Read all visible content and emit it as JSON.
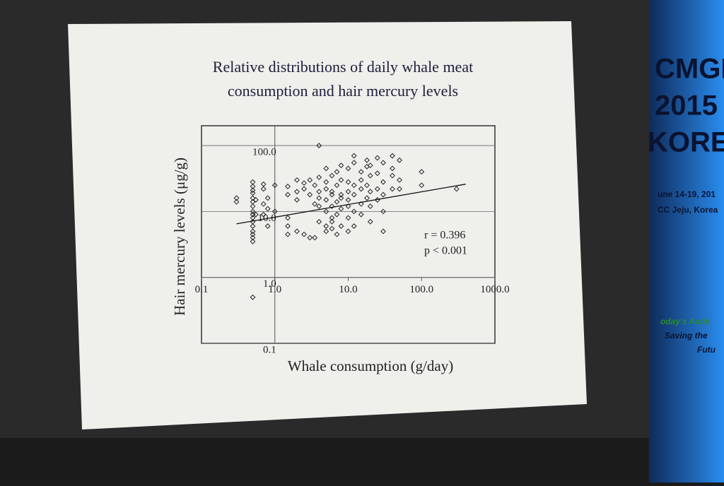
{
  "chart_data": {
    "type": "scatter",
    "title": "Relative distributions of daily whale meat consumption and hair mercury levels",
    "xlabel": "Whale consumption (g/day)",
    "ylabel": "Hair mercury levels (μg/g)",
    "annotations": [
      "r = 0.396",
      "p < 0.001"
    ],
    "log_x": true,
    "log_y": true,
    "color": "#222222",
    "grid": true,
    "x_axis_at": 1,
    "y_axis_at": 1,
    "xlim": [
      0.1,
      1000
    ],
    "ylim": [
      0.1,
      200
    ],
    "xticks": [
      0.1,
      {
        "value": 1,
        "label": "1.0"
      },
      {
        "value": 10,
        "label": "10.0"
      },
      {
        "value": 100,
        "label": "100.0"
      },
      {
        "value": 1000,
        "label": "1000.0"
      }
    ],
    "yticks": [
      0.1,
      {
        "value": 1,
        "label": "1.0"
      },
      {
        "value": 10,
        "label": "10.0"
      },
      {
        "value": 100,
        "label": "100.0"
      }
    ],
    "x": [
      0.3,
      0.3,
      0.5,
      0.5,
      0.5,
      0.5,
      0.5,
      0.5,
      0.5,
      0.5,
      0.5,
      0.5,
      0.5,
      0.5,
      0.5,
      0.5,
      0.5,
      0.5,
      0.5,
      0.55,
      0.55,
      0.7,
      0.7,
      0.7,
      0.7,
      0.8,
      0.8,
      0.8,
      1,
      1,
      1.5,
      1.5,
      1.5,
      1.5,
      1.5,
      2,
      2,
      2,
      2,
      2.5,
      2.5,
      2.5,
      3,
      3,
      3,
      3.5,
      3.5,
      3.5,
      4,
      4,
      4,
      4,
      4,
      4,
      5,
      5,
      5,
      5,
      5,
      5,
      5,
      6,
      6,
      6,
      6,
      6,
      6,
      6,
      7,
      7,
      7,
      7,
      7,
      8,
      8,
      8,
      8,
      8,
      8,
      10,
      10,
      10,
      10,
      10,
      10,
      10,
      12,
      12,
      12,
      12,
      12,
      12,
      15,
      15,
      15,
      15,
      15,
      18,
      18,
      18,
      18,
      20,
      20,
      20,
      20,
      20,
      25,
      25,
      25,
      25,
      30,
      30,
      30,
      30,
      30,
      40,
      40,
      40,
      40,
      50,
      50,
      50,
      100,
      100,
      300
    ],
    "values": [
      16,
      14,
      3.5,
      4,
      4.5,
      5,
      6,
      7,
      8,
      9,
      10,
      12,
      14,
      16,
      19,
      21,
      24,
      28,
      0.5,
      9,
      15,
      9,
      13,
      22,
      26,
      6,
      11,
      16,
      10,
      25,
      24,
      18,
      8,
      6,
      4.5,
      20,
      15,
      30,
      5,
      4.5,
      22,
      27,
      18,
      4,
      30,
      4,
      13,
      25,
      100,
      20,
      16,
      12,
      33,
      7,
      15,
      22,
      28,
      45,
      6,
      5,
      10,
      35,
      20,
      18,
      12,
      8,
      5.5,
      7,
      25,
      40,
      14,
      4.5,
      9,
      30,
      50,
      18,
      6,
      11,
      16,
      28,
      45,
      20,
      15,
      12,
      8,
      5,
      70,
      55,
      25,
      18,
      10,
      6,
      40,
      30,
      22,
      13,
      9,
      60,
      48,
      25,
      16,
      50,
      35,
      20,
      12,
      7,
      65,
      38,
      22,
      15,
      55,
      28,
      18,
      10,
      5,
      70,
      45,
      35,
      22,
      30,
      22,
      60,
      40,
      25,
      22
    ],
    "trend_line": {
      "x": [
        0.3,
        400
      ],
      "values": [
        6.5,
        26
      ]
    }
  },
  "banner": {
    "lines": [
      "CMGF",
      "2015",
      "KOREA",
      "une 14-19, 201",
      "CC Jeju, Korea",
      "oday's Actio",
      "Saving the",
      "Futu"
    ]
  }
}
